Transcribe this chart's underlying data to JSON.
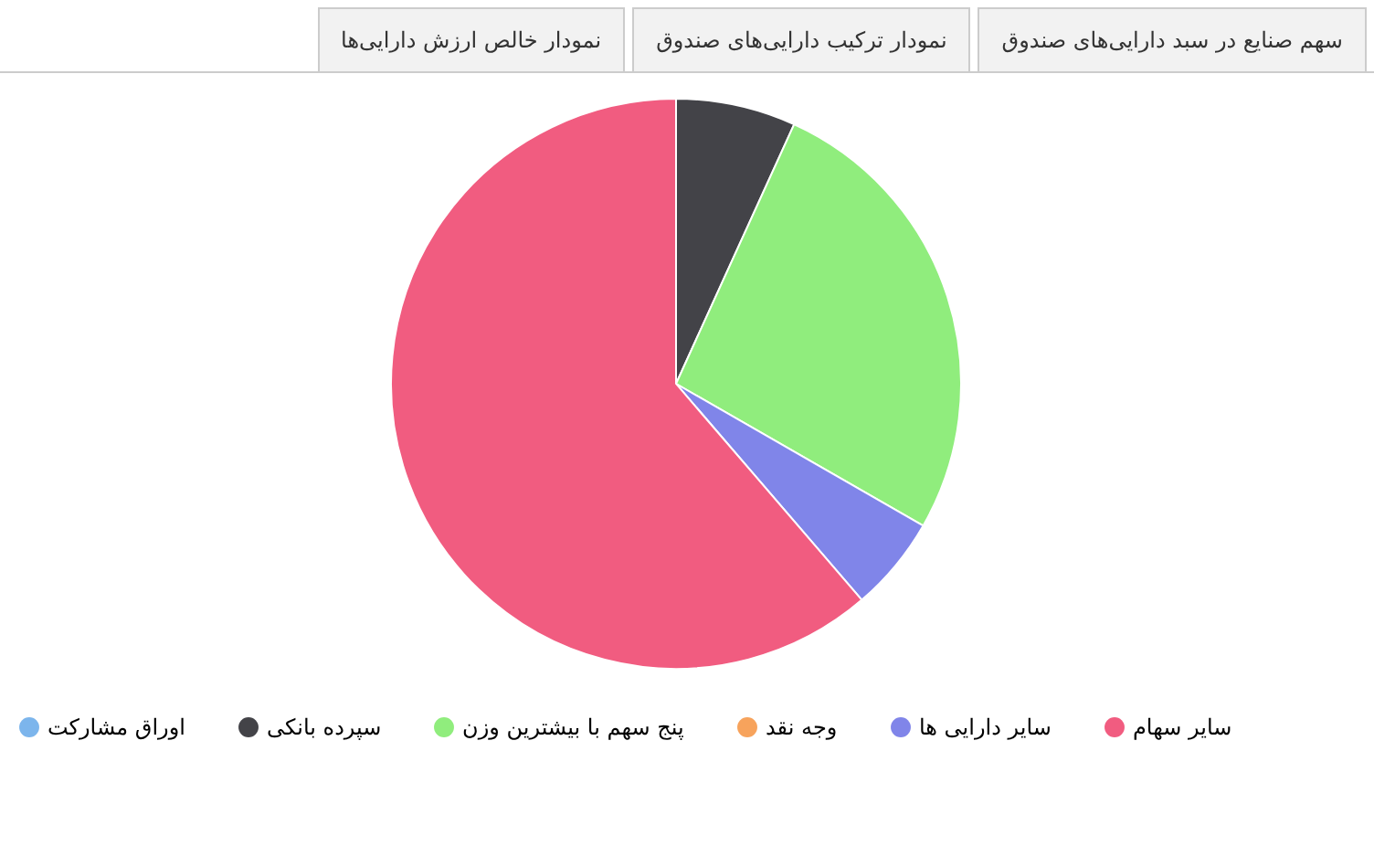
{
  "chart_data": {
    "type": "pie",
    "annotations": [
      "نمودار خالص ارزش دارایی‌ها",
      "نمودار ترکیب دارایی‌های صندوق",
      "سهم صنایع در سبد دارایی‌های صندوق"
    ],
    "categories": [
      "اوراق مشارکت",
      "سپرده بانکی",
      "پنج سهم با بیشترین وزن",
      "وجه نقد",
      "سایر دارایی ها",
      "سایر سهام"
    ],
    "values": [
      0,
      6.8,
      26.5,
      0,
      5.4,
      61.3
    ],
    "colors": [
      "#7cb5ec",
      "#434348",
      "#90ed7d",
      "#f7a35c",
      "#8085e9",
      "#f15c80"
    ],
    "legend": "bottom"
  }
}
